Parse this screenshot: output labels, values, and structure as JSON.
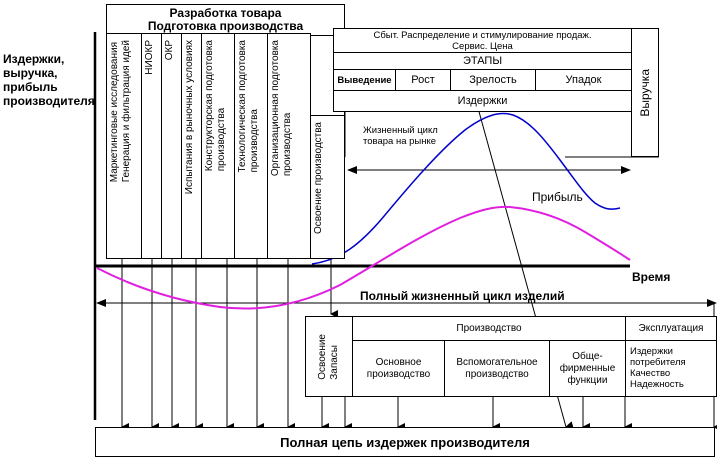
{
  "left_axis_label": "Издержки,\nвыручка,\nприбыль\nпроизводителя",
  "time_label": "Время",
  "full_cycle_label": "Полный жизненный цикл изделий",
  "bottom_bar_label": "Полная цепь издержек производителя",
  "development": {
    "title_line1": "Разработка товара",
    "title_line2": "Подготовка производства",
    "columns": [
      "Маркетинговые исследования\nГенерация и фильтрация идей",
      "НИОКР",
      "ОКР",
      "Испытания в рыночных условиях",
      "Конструкторская подготовка\nпроизводства",
      "Технологическая подготовка\nпроизводства",
      "Организационная подготовка\nпроизводства",
      "Освоение производства"
    ]
  },
  "market": {
    "top_line1": "Сбыт.  Распределение и стимулирование продаж.",
    "top_line2": "Сервис. Цена",
    "stages_title": "ЭТАПЫ",
    "stages": [
      "Выведение",
      "Рост",
      "Зрелость",
      "Упадок"
    ],
    "costs_label": "Издержки",
    "revenue_label": "Выручка",
    "lifecycle_label": "Жизненный цикл\nтовара на рынке",
    "profit_label": "Прибыль"
  },
  "production": {
    "mastering_label": "Освоение\nЗапасы",
    "production_title": "Производство",
    "cells": [
      "Основное\nпроизводство",
      "Вспомогательное\nпроизводство",
      "Обще-\nфирменные\nфункции"
    ],
    "exploitation_title": "Эксплуатация",
    "exploitation_items": "Издержки\nпотребителя\nКачество\nНадежность"
  },
  "colors": {
    "revenue_curve": "#0000cc",
    "profit_curve": "#e020e0",
    "line": "#000000"
  }
}
